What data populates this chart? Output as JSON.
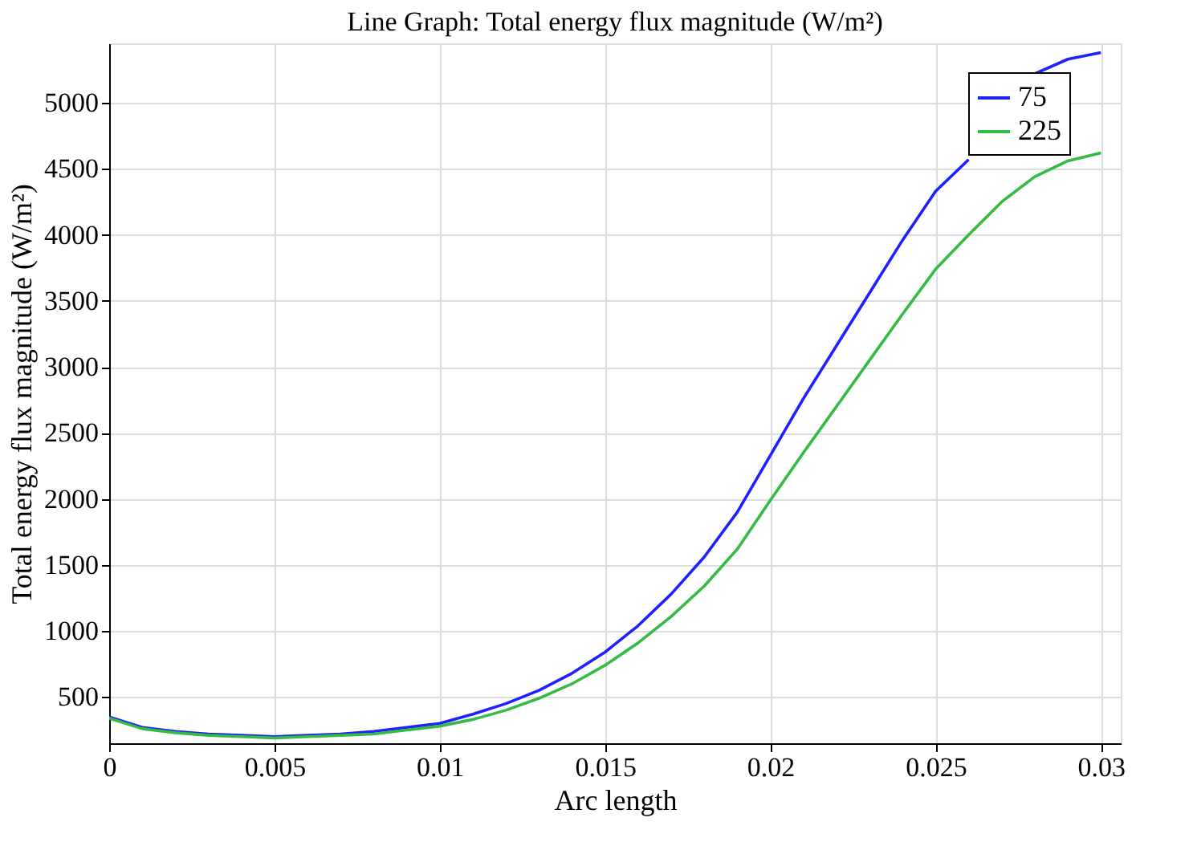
{
  "chart_data": {
    "type": "line",
    "title": "Line Graph: Total energy flux magnitude (W/m²)",
    "xlabel": "Arc length",
    "ylabel": "Total energy flux magnitude (W/m²)",
    "x": [
      0,
      0.001,
      0.002,
      0.003,
      0.004,
      0.005,
      0.006,
      0.007,
      0.008,
      0.009,
      0.01,
      0.011,
      0.012,
      0.013,
      0.014,
      0.015,
      0.016,
      0.017,
      0.018,
      0.019,
      0.02,
      0.021,
      0.022,
      0.023,
      0.024,
      0.025,
      0.026,
      0.027,
      0.028,
      0.029,
      0.03
    ],
    "series": [
      {
        "name": "75",
        "color": "#1f1fff",
        "values": [
          350,
          270,
          240,
          220,
          210,
          200,
          210,
          220,
          240,
          270,
          300,
          370,
          450,
          550,
          680,
          840,
          1040,
          1280,
          1560,
          1900,
          2330,
          2760,
          3160,
          3560,
          3960,
          4330,
          4570,
          null,
          5220,
          5330,
          5380
        ]
      },
      {
        "name": "225",
        "color": "#33bb44",
        "values": [
          340,
          260,
          230,
          210,
          200,
          190,
          200,
          210,
          220,
          250,
          280,
          330,
          400,
          490,
          600,
          740,
          910,
          1110,
          1340,
          1620,
          1990,
          2350,
          2700,
          3050,
          3400,
          3740,
          4000,
          4250,
          4440,
          4560,
          4620
        ]
      }
    ],
    "xlim": [
      0,
      0.0306
    ],
    "xticks": [
      0,
      0.005,
      0.01,
      0.015,
      0.02,
      0.025,
      0.03
    ],
    "ylim": [
      150,
      5450
    ],
    "yticks": [
      500,
      1000,
      1500,
      2000,
      2500,
      3000,
      3500,
      4000,
      4500,
      5000
    ],
    "grid": true,
    "legend": "top right",
    "marker": "none",
    "line_style": "solid"
  }
}
